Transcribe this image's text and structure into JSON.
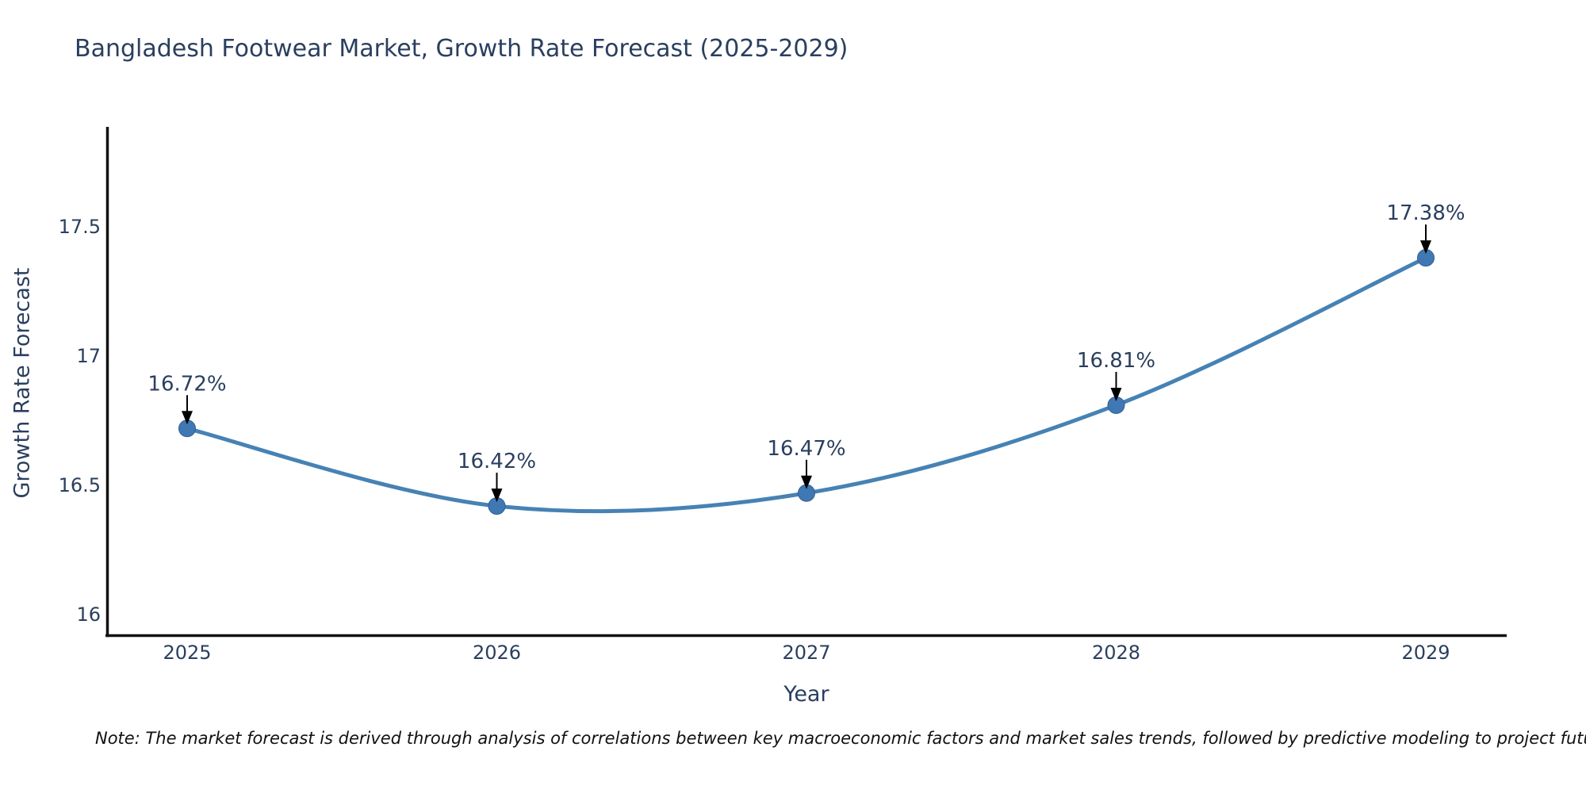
{
  "note": "Note: The market forecast is derived through analysis of correlations between key macroeconomic factors and market sales trends, followed by predictive modeling to project future sal",
  "chart_data": {
    "type": "line",
    "title": "Bangladesh Footwear Market, Growth Rate Forecast (2025-2029)",
    "xlabel": "Year",
    "ylabel": "Growth Rate Forecast",
    "categories": [
      "2025",
      "2026",
      "2027",
      "2028",
      "2029"
    ],
    "series": [
      {
        "name": "Growth Rate Forecast",
        "values": [
          16.72,
          16.42,
          16.47,
          16.81,
          17.38
        ]
      }
    ],
    "point_labels": [
      "16.72%",
      "16.42%",
      "16.47%",
      "16.81%",
      "17.38%"
    ],
    "ytick_labels": [
      "16",
      "16.5",
      "17",
      "17.5"
    ],
    "ytick_values": [
      16,
      16.5,
      17,
      17.5
    ],
    "ylim": [
      15.92,
      17.89
    ],
    "grid": false,
    "legend_position": "none",
    "line_shape": "spline",
    "colors": {
      "line": "#4682b4",
      "marker": "#4078b4",
      "marker_edge": "#2f5f8f",
      "axis": "#111111",
      "tick_text": "#2a3f5f",
      "annotation_text": "#2a3f5f",
      "arrow": "#000000",
      "title_text": "#2a3f5f"
    }
  }
}
